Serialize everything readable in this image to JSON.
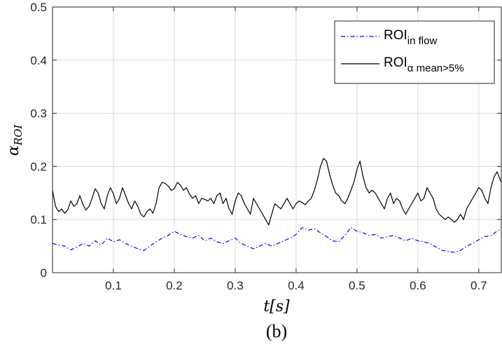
{
  "chart_data": {
    "type": "line",
    "xlabel": "t[s]",
    "ylabel": {
      "base": "α",
      "sub": "ROI"
    },
    "caption": "(b)",
    "xlim": [
      0,
      0.737
    ],
    "ylim": [
      0,
      0.5
    ],
    "xticks": [
      0.1,
      0.2,
      0.3,
      0.4,
      0.5,
      0.6,
      0.7
    ],
    "xtick_labels": [
      "0.1",
      "0.2",
      "0.3",
      "0.4",
      "0.5",
      "0.6",
      "0.7"
    ],
    "yticks": [
      0,
      0.1,
      0.2,
      0.3,
      0.4,
      0.5
    ],
    "ytick_labels": [
      "0",
      "0.1",
      "0.2",
      "0.3",
      "0.4",
      "0.5"
    ],
    "grid": true,
    "legend_position": "top-right",
    "series": [
      {
        "name": {
          "base": "ROI",
          "sub": "in flow"
        },
        "style": "dash-dot",
        "color": "#0000ff",
        "x": [
          0.0,
          0.01,
          0.02,
          0.03,
          0.04,
          0.05,
          0.06,
          0.07,
          0.08,
          0.09,
          0.1,
          0.11,
          0.12,
          0.13,
          0.14,
          0.15,
          0.16,
          0.17,
          0.18,
          0.19,
          0.2,
          0.21,
          0.22,
          0.23,
          0.24,
          0.25,
          0.26,
          0.27,
          0.28,
          0.29,
          0.3,
          0.31,
          0.32,
          0.33,
          0.34,
          0.35,
          0.36,
          0.37,
          0.38,
          0.39,
          0.4,
          0.41,
          0.42,
          0.43,
          0.44,
          0.45,
          0.46,
          0.47,
          0.48,
          0.49,
          0.5,
          0.51,
          0.52,
          0.53,
          0.54,
          0.55,
          0.56,
          0.57,
          0.58,
          0.59,
          0.6,
          0.61,
          0.62,
          0.63,
          0.64,
          0.65,
          0.66,
          0.67,
          0.68,
          0.69,
          0.7,
          0.71,
          0.72,
          0.73,
          0.737
        ],
        "y": [
          0.055,
          0.052,
          0.05,
          0.043,
          0.048,
          0.055,
          0.05,
          0.06,
          0.052,
          0.065,
          0.058,
          0.062,
          0.055,
          0.05,
          0.045,
          0.042,
          0.05,
          0.058,
          0.065,
          0.07,
          0.078,
          0.072,
          0.068,
          0.065,
          0.07,
          0.06,
          0.065,
          0.058,
          0.055,
          0.06,
          0.065,
          0.055,
          0.05,
          0.045,
          0.05,
          0.055,
          0.05,
          0.055,
          0.06,
          0.065,
          0.072,
          0.085,
          0.08,
          0.083,
          0.075,
          0.068,
          0.06,
          0.058,
          0.07,
          0.085,
          0.078,
          0.075,
          0.07,
          0.072,
          0.065,
          0.068,
          0.07,
          0.065,
          0.06,
          0.065,
          0.06,
          0.058,
          0.055,
          0.048,
          0.042,
          0.04,
          0.038,
          0.042,
          0.05,
          0.055,
          0.062,
          0.068,
          0.07,
          0.078,
          0.082
        ]
      },
      {
        "name": {
          "base": "ROI",
          "sub": "α mean>5%"
        },
        "style": "solid",
        "color": "#000000",
        "x": [
          0.0,
          0.005,
          0.01,
          0.015,
          0.02,
          0.025,
          0.03,
          0.035,
          0.04,
          0.045,
          0.05,
          0.055,
          0.06,
          0.065,
          0.07,
          0.075,
          0.08,
          0.085,
          0.09,
          0.095,
          0.1,
          0.105,
          0.11,
          0.115,
          0.12,
          0.125,
          0.13,
          0.135,
          0.14,
          0.145,
          0.15,
          0.155,
          0.16,
          0.165,
          0.17,
          0.175,
          0.18,
          0.185,
          0.19,
          0.195,
          0.2,
          0.205,
          0.21,
          0.215,
          0.22,
          0.225,
          0.23,
          0.235,
          0.24,
          0.245,
          0.25,
          0.255,
          0.26,
          0.265,
          0.27,
          0.275,
          0.28,
          0.285,
          0.29,
          0.295,
          0.3,
          0.305,
          0.31,
          0.315,
          0.32,
          0.325,
          0.33,
          0.335,
          0.34,
          0.345,
          0.35,
          0.355,
          0.36,
          0.365,
          0.37,
          0.375,
          0.38,
          0.385,
          0.39,
          0.395,
          0.4,
          0.405,
          0.41,
          0.415,
          0.42,
          0.425,
          0.43,
          0.435,
          0.44,
          0.445,
          0.45,
          0.455,
          0.46,
          0.465,
          0.47,
          0.475,
          0.48,
          0.485,
          0.49,
          0.495,
          0.5,
          0.505,
          0.51,
          0.515,
          0.52,
          0.525,
          0.53,
          0.535,
          0.54,
          0.545,
          0.55,
          0.555,
          0.56,
          0.565,
          0.57,
          0.575,
          0.58,
          0.585,
          0.59,
          0.595,
          0.6,
          0.605,
          0.61,
          0.615,
          0.62,
          0.625,
          0.63,
          0.635,
          0.64,
          0.645,
          0.65,
          0.655,
          0.66,
          0.665,
          0.67,
          0.675,
          0.68,
          0.685,
          0.69,
          0.695,
          0.7,
          0.705,
          0.71,
          0.715,
          0.72,
          0.725,
          0.73,
          0.737
        ],
        "y": [
          0.155,
          0.125,
          0.115,
          0.12,
          0.112,
          0.118,
          0.135,
          0.125,
          0.13,
          0.145,
          0.128,
          0.118,
          0.125,
          0.14,
          0.158,
          0.15,
          0.13,
          0.12,
          0.145,
          0.16,
          0.148,
          0.13,
          0.14,
          0.16,
          0.145,
          0.13,
          0.12,
          0.135,
          0.125,
          0.11,
          0.105,
          0.115,
          0.12,
          0.112,
          0.13,
          0.16,
          0.17,
          0.168,
          0.163,
          0.155,
          0.158,
          0.17,
          0.165,
          0.155,
          0.16,
          0.148,
          0.14,
          0.145,
          0.13,
          0.14,
          0.138,
          0.135,
          0.14,
          0.13,
          0.145,
          0.15,
          0.13,
          0.14,
          0.12,
          0.11,
          0.135,
          0.15,
          0.145,
          0.13,
          0.12,
          0.11,
          0.14,
          0.13,
          0.12,
          0.11,
          0.1,
          0.09,
          0.11,
          0.13,
          0.125,
          0.12,
          0.13,
          0.14,
          0.13,
          0.12,
          0.13,
          0.135,
          0.132,
          0.128,
          0.135,
          0.14,
          0.155,
          0.175,
          0.2,
          0.215,
          0.21,
          0.185,
          0.165,
          0.15,
          0.145,
          0.135,
          0.13,
          0.14,
          0.155,
          0.17,
          0.195,
          0.21,
          0.18,
          0.16,
          0.15,
          0.155,
          0.15,
          0.14,
          0.13,
          0.12,
          0.14,
          0.15,
          0.13,
          0.14,
          0.135,
          0.12,
          0.11,
          0.12,
          0.13,
          0.14,
          0.15,
          0.135,
          0.14,
          0.16,
          0.15,
          0.14,
          0.12,
          0.11,
          0.105,
          0.1,
          0.105,
          0.1,
          0.095,
          0.1,
          0.11,
          0.1,
          0.12,
          0.13,
          0.14,
          0.15,
          0.16,
          0.155,
          0.14,
          0.13,
          0.16,
          0.18,
          0.19,
          0.17
        ]
      }
    ]
  }
}
